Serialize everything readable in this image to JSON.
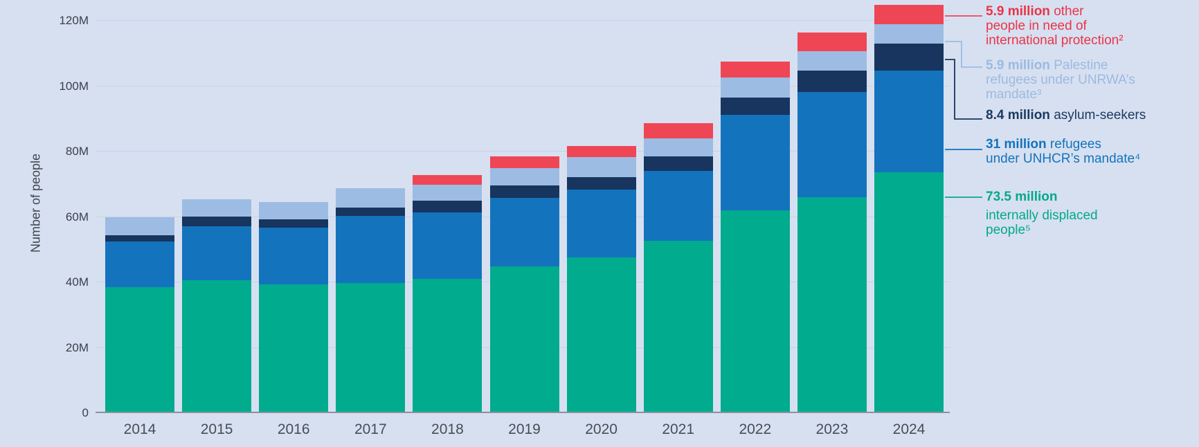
{
  "page": {
    "background": "#D7E0F0"
  },
  "chart_data": {
    "type": "bar",
    "stacked": true,
    "title": "",
    "xlabel": "",
    "ylabel": "Number of people",
    "ylim": [
      0,
      120
    ],
    "ytick_values": [
      0,
      20,
      40,
      60,
      80,
      100,
      120
    ],
    "ytick_labels": [
      "0",
      "20M",
      "40M",
      "60M",
      "80M",
      "100M",
      "120M"
    ],
    "grid": true,
    "legend_position": "right",
    "categories": [
      "2014",
      "2015",
      "2016",
      "2017",
      "2018",
      "2019",
      "2020",
      "2021",
      "2022",
      "2023",
      "2024"
    ],
    "series": [
      {
        "key": "idp",
        "name": "internally displaced people",
        "color": "#00AB8E",
        "values": [
          38.3,
          40.4,
          39.2,
          39.6,
          40.8,
          44.7,
          47.3,
          52.4,
          61.7,
          65.8,
          73.5
        ]
      },
      {
        "key": "refugees",
        "name": "refugees under UNHCR’s mandate",
        "color": "#1473BD",
        "values": [
          14.0,
          16.5,
          17.3,
          20.4,
          20.4,
          20.8,
          20.8,
          21.5,
          29.2,
          32.1,
          31.0
        ]
      },
      {
        "key": "asylum",
        "name": "asylum-seekers",
        "color": "#17355E",
        "values": [
          1.9,
          3.1,
          2.6,
          2.6,
          3.6,
          4.0,
          3.9,
          4.4,
          5.4,
          6.6,
          8.4
        ]
      },
      {
        "key": "unrwa",
        "name": "Palestine refugees under UNRWA’s mandate",
        "color": "#9DBCE3",
        "values": [
          5.4,
          5.3,
          5.3,
          5.9,
          4.9,
          5.3,
          6.0,
          5.6,
          6.2,
          6.0,
          5.9
        ]
      },
      {
        "key": "other",
        "name": "other people in need of international protection",
        "color": "#EF4656",
        "values": [
          0,
          0,
          0,
          0,
          3.0,
          3.5,
          3.5,
          4.5,
          4.9,
          5.7,
          5.9
        ]
      }
    ]
  },
  "legend": {
    "entries": [
      {
        "key": "other",
        "text_color": "#EA3448",
        "line_color": "#EF4656",
        "lines": [
          {
            "b": "5.9 million",
            "t": " other"
          },
          {
            "b": "",
            "t": "people in need of"
          },
          {
            "b": "",
            "t": "international protection²"
          }
        ]
      },
      {
        "key": "unrwa",
        "text_color": "#9BBAE1",
        "line_color": "#9DBCE3",
        "lines": [
          {
            "b": "5.9 million",
            "t": " Palestine"
          },
          {
            "b": "",
            "t": "refugees under UNRWA’s"
          },
          {
            "b": "",
            "t": "mandate³"
          }
        ]
      },
      {
        "key": "asylum",
        "text_color": "#1B3A63",
        "line_color": "#17355E",
        "lines": [
          {
            "b": "8.4 million",
            "t": " asylum-seekers"
          }
        ]
      },
      {
        "key": "refugees",
        "text_color": "#1273BE",
        "line_color": "#1473BD",
        "lines": [
          {
            "b": "31 million",
            "t": " refugees"
          },
          {
            "b": "",
            "t": "under UNHCR’s mandate⁴"
          }
        ]
      },
      {
        "key": "idp",
        "text_color": "#00A98C",
        "line_color": "#00AB8E",
        "lines": [
          {
            "b": "73.5 million",
            "t": ""
          },
          {
            "b": "",
            "t": "internally displaced",
            "gap": true
          },
          {
            "b": "",
            "t": "people⁵"
          }
        ]
      }
    ]
  }
}
